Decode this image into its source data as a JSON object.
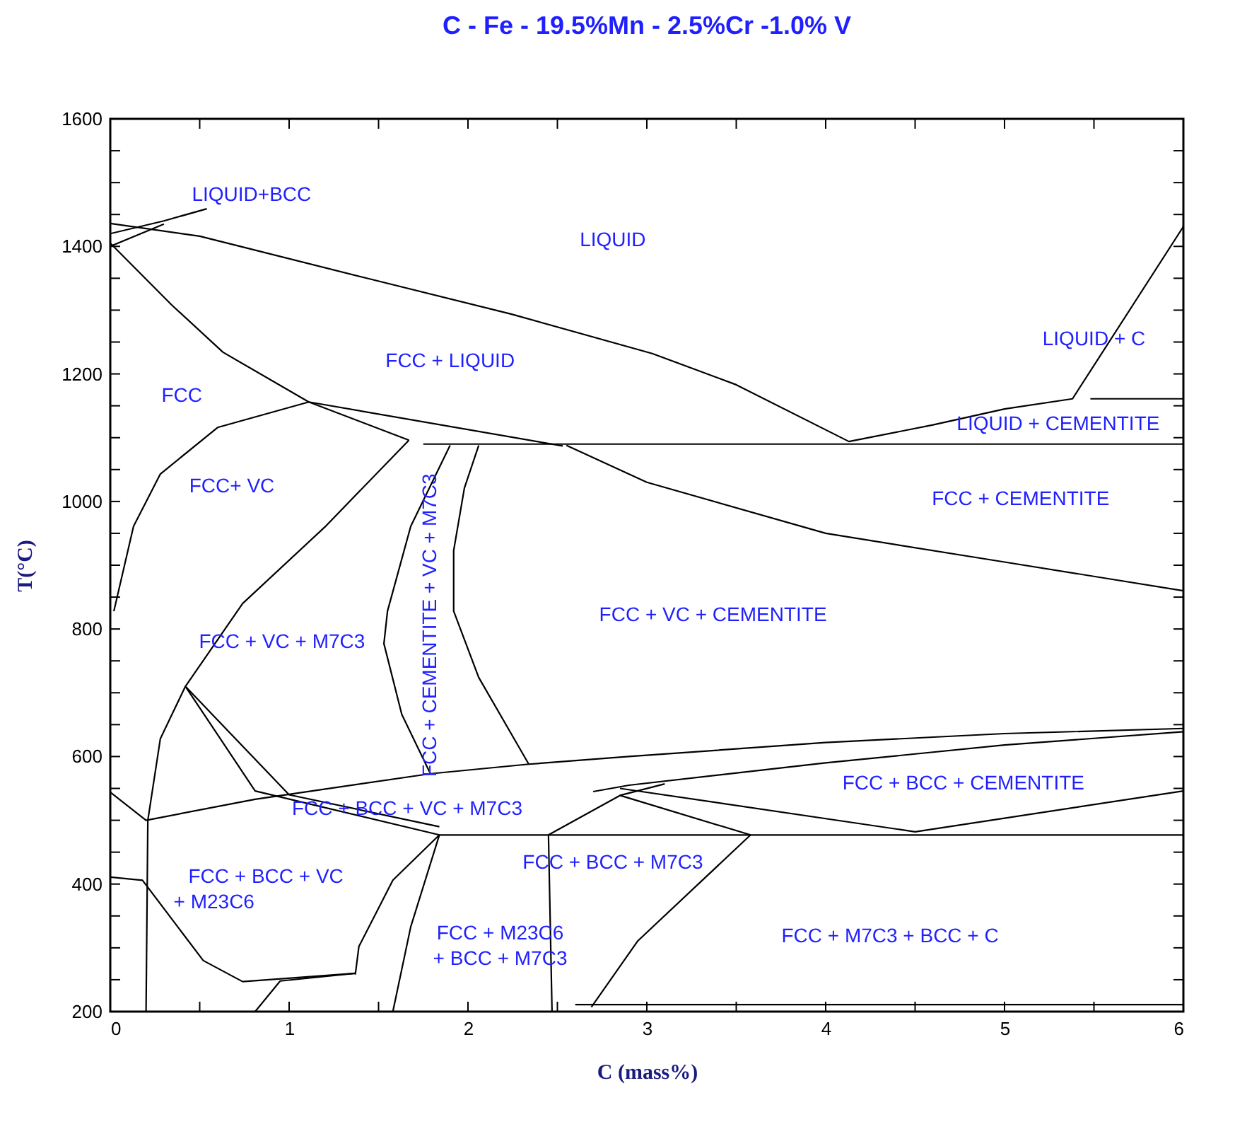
{
  "chart_data": {
    "type": "line",
    "title": "C - Fe - 19.5%Mn - 2.5%Cr -1.0% V",
    "xlabel": "C (mass%)",
    "ylabel": "T(°C)",
    "xlim": [
      0,
      6
    ],
    "ylim": [
      200,
      1600
    ],
    "xticks": [
      0,
      {
        "value": 0.5,
        "label": null
      },
      1,
      {
        "value": 1.5,
        "label": null
      },
      2,
      {
        "value": 2.5,
        "label": null
      },
      3,
      {
        "value": 3.5,
        "label": null
      },
      4,
      {
        "value": 4.5,
        "label": null
      },
      5,
      {
        "value": 5.5,
        "label": null
      },
      6
    ],
    "yticks": [
      200,
      {
        "value": 250,
        "label": null
      },
      {
        "value": 300,
        "label": null
      },
      {
        "value": 350,
        "label": null
      },
      400,
      {
        "value": 450,
        "label": null
      },
      {
        "value": 500,
        "label": null
      },
      {
        "value": 550,
        "label": null
      },
      600,
      {
        "value": 650,
        "label": null
      },
      {
        "value": 700,
        "label": null
      },
      {
        "value": 750,
        "label": null
      },
      800,
      {
        "value": 850,
        "label": null
      },
      {
        "value": 900,
        "label": null
      },
      {
        "value": 950,
        "label": null
      },
      1000,
      {
        "value": 1050,
        "label": null
      },
      {
        "value": 1100,
        "label": null
      },
      {
        "value": 1150,
        "label": null
      },
      1200,
      {
        "value": 1250,
        "label": null
      },
      {
        "value": 1300,
        "label": null
      },
      {
        "value": 1350,
        "label": null
      },
      1400,
      {
        "value": 1450,
        "label": null
      },
      {
        "value": 1500,
        "label": null
      },
      {
        "value": 1550,
        "label": null
      },
      1600
    ],
    "grid": false,
    "marker": "none",
    "line_style": "solid",
    "series": [
      {
        "color": "#000000",
        "x": [
          0,
          0.5,
          1.45,
          2.24,
          3.03,
          3.5,
          4.13,
          4.6,
          5.0,
          5.38,
          6
        ],
        "values": [
          1436,
          1416,
          1349,
          1294,
          1232,
          1183,
          1094,
          1120,
          1145,
          1161,
          1431
        ]
      },
      {
        "color": "#000000",
        "x": [
          5.48,
          6
        ],
        "values": [
          1161,
          1161
        ]
      },
      {
        "color": "#000000",
        "x": [
          1.75,
          6
        ],
        "values": [
          1090,
          1090
        ]
      },
      {
        "color": "#000000",
        "x": [
          0,
          0.34,
          0.63,
          1.11,
          1.67
        ],
        "values": [
          1405,
          1309,
          1234,
          1156,
          1096
        ]
      },
      {
        "color": "#000000",
        "x": [
          0,
          0.3,
          0.54
        ],
        "values": [
          1420,
          1440,
          1459
        ]
      },
      {
        "color": "#000000",
        "x": [
          0,
          0.3
        ],
        "values": [
          1400,
          1435
        ]
      },
      {
        "color": "#000000",
        "x": [
          0.02,
          0.13,
          0.28,
          0.6,
          1.11,
          2.53
        ],
        "values": [
          828,
          961,
          1043,
          1116,
          1156,
          1087
        ]
      },
      {
        "color": "#000000",
        "x": [
          1.9,
          1.68,
          1.55,
          1.53,
          1.63,
          1.79
        ],
        "values": [
          1088,
          961,
          828,
          777,
          666,
          573
        ]
      },
      {
        "color": "#000000",
        "x": [
          2.06,
          1.98,
          1.92,
          1.92,
          2.06,
          2.34
        ],
        "values": [
          1088,
          1021,
          923,
          828,
          724,
          588
        ]
      },
      {
        "color": "#000000",
        "x": [
          2.55,
          3.0,
          4.0,
          5.0,
          6.0
        ],
        "values": [
          1088,
          1030,
          950,
          905,
          860
        ]
      },
      {
        "color": "#000000",
        "x": [
          0.2,
          0.21,
          0.28,
          0.42,
          0.74,
          1.2,
          1.67
        ],
        "values": [
          200,
          500,
          628,
          710,
          840,
          960,
          1096
        ]
      },
      {
        "color": "#000000",
        "x": [
          0,
          0.2,
          0.81,
          1.79,
          2.34,
          2.9,
          4.0,
          5.0,
          6.0
        ],
        "values": [
          544,
          500,
          533,
          573,
          588,
          600,
          622,
          636,
          644
        ]
      },
      {
        "color": "#000000",
        "x": [
          2.7,
          2.9,
          4.0,
          5.0,
          6.0
        ],
        "values": [
          545,
          555,
          590,
          618,
          639
        ]
      },
      {
        "color": "#000000",
        "x": [
          2.85,
          3.58
        ],
        "values": [
          539,
          477
        ]
      },
      {
        "color": "#000000",
        "x": [
          2.85,
          4.5,
          6.0
        ],
        "values": [
          550,
          482,
          546
        ]
      },
      {
        "color": "#000000",
        "x": [
          0.42,
          0.81,
          1.84,
          2.45,
          2.85,
          3.1
        ],
        "values": [
          710,
          546,
          477,
          477,
          539,
          557
        ]
      },
      {
        "color": "#000000",
        "x": [
          0.42,
          1.0,
          1.84
        ],
        "values": [
          710,
          540,
          490
        ]
      },
      {
        "color": "#000000",
        "x": [
          2.45,
          6.0
        ],
        "values": [
          477,
          477
        ]
      },
      {
        "color": "#000000",
        "x": [
          2.45,
          2.47
        ],
        "values": [
          477,
          200
        ]
      },
      {
        "color": "#000000",
        "x": [
          3.58,
          2.95,
          2.69
        ],
        "values": [
          477,
          311,
          207
        ]
      },
      {
        "color": "#000000",
        "x": [
          1.84,
          1.68,
          1.58
        ],
        "values": [
          477,
          333,
          200
        ]
      },
      {
        "color": "#000000",
        "x": [
          1.84,
          1.58,
          1.39,
          1.37
        ],
        "values": [
          477,
          406,
          302,
          258
        ]
      },
      {
        "color": "#000000",
        "x": [
          0,
          0.18,
          0.52,
          0.74,
          1.37
        ],
        "values": [
          411,
          406,
          280,
          247,
          260
        ]
      },
      {
        "color": "#000000",
        "x": [
          0.81,
          0.95,
          1.37
        ],
        "values": [
          200,
          248,
          260
        ]
      },
      {
        "color": "#000000",
        "x": [
          2.6,
          6.0
        ],
        "values": [
          211,
          211
        ]
      }
    ],
    "annotations": [
      "LIQUID+BCC",
      "LIQUID",
      "LIQUID + C",
      "FCC + LIQUID",
      "FCC",
      "LIQUID + CEMENTITE",
      "FCC+ VC",
      "FCC + CEMENTITE",
      "FCC + VC + CEMENTITE",
      "FCC + VC + M7C3",
      "FCC + CEMENTITE + VC + M7C3",
      "FCC + BCC + CEMENTITE",
      "FCC + BCC + VC + M7C3",
      "FCC + BCC + M7C3",
      "FCC + BCC + VC",
      "+ M23C6",
      "FCC + M23C6",
      "+ BCC + M7C3",
      "FCC + M7C3 + BCC + C"
    ]
  }
}
